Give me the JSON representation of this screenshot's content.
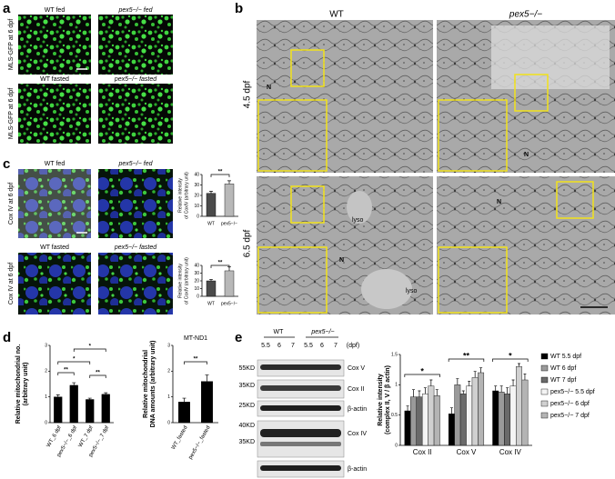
{
  "panel_labels": [
    "a",
    "b",
    "c",
    "d",
    "e"
  ],
  "panel_a": {
    "titles": [
      "WT fed",
      "pex5−/− fed",
      "WT fasted",
      "pex5−/− fasted"
    ],
    "row_labels": [
      "MLS-GFP at 6 dpf",
      "MLS-GFP at 6 dpf"
    ]
  },
  "panel_b": {
    "columns": [
      "WT",
      "pex5−/−"
    ],
    "rows": [
      "4.5 dpf",
      "6.5 dpf"
    ],
    "annotations": [
      "N",
      "N",
      "N",
      "N",
      "lyso",
      "lyso"
    ]
  },
  "panel_c": {
    "titles": [
      "WT fed",
      "pex5−/− fed",
      "WT fasted",
      "pex5−/− fasted"
    ],
    "row_labels": [
      "Cox IV at 6 dpf",
      "Cox IV at 6 dpf"
    ]
  },
  "panel_e": {
    "genotypes": [
      "WT",
      "pex5−/−"
    ],
    "lanes": [
      "5.5",
      "6",
      "7",
      "5.5",
      "6",
      "7",
      "(dpf)"
    ],
    "markers": [
      "55KD",
      "35KD",
      "25KD",
      "40KD",
      "35KD"
    ],
    "bands": [
      "Cox V",
      "Cox II",
      "β-actin",
      "Cox IV",
      "β-actin"
    ]
  },
  "chart_data": [
    {
      "type": "bar",
      "y_label": [
        "Relative intensity",
        "of CoxIV (arbitrary unit)"
      ],
      "categories": [
        "WT",
        "pex5−/−"
      ],
      "values": [
        22,
        31
      ],
      "errors": [
        2,
        3
      ],
      "colors": [
        "#4a4a4a",
        "#b8b8b8"
      ],
      "ylim": [
        0,
        40
      ],
      "yticks": [
        0,
        10,
        20,
        30,
        40
      ],
      "annotations": [
        "**"
      ]
    },
    {
      "type": "bar",
      "y_label": [
        "Relative intensity",
        "of CoxIV (arbitrary unit)"
      ],
      "categories": [
        "WT",
        "pex5−/−"
      ],
      "values": [
        20,
        33
      ],
      "errors": [
        2,
        5
      ],
      "colors": [
        "#4a4a4a",
        "#b8b8b8"
      ],
      "ylim": [
        0,
        40
      ],
      "yticks": [
        0,
        10,
        20,
        30,
        40
      ],
      "annotations": [
        "**"
      ]
    },
    {
      "type": "bar",
      "y_label": [
        "Relative mitochondrial no.",
        "(arbitrary unit)"
      ],
      "categories": [
        "WT_6 dpf",
        "pex5−/−_6 dpf",
        "WT_7 dpf",
        "pex5−/−_7 dpf"
      ],
      "values": [
        1.0,
        1.45,
        0.9,
        1.1
      ],
      "errors": [
        0.08,
        0.1,
        0.05,
        0.06
      ],
      "colors": [
        "#000000",
        "#000000",
        "#000000",
        "#000000"
      ],
      "ylim": [
        0,
        3
      ],
      "yticks": [
        0,
        1,
        2,
        3
      ],
      "annotations": [
        "**",
        "**",
        "*",
        "*"
      ]
    },
    {
      "type": "bar",
      "title": "MT-ND1",
      "y_label": [
        "Relative mitochondrial",
        "DNA amounts (arbitrary unit)"
      ],
      "categories": [
        "WT_fasted",
        "pex5−/−_fasted"
      ],
      "values": [
        0.8,
        1.6
      ],
      "errors": [
        0.15,
        0.25
      ],
      "colors": [
        "#000000",
        "#000000"
      ],
      "ylim": [
        0,
        3
      ],
      "yticks": [
        0,
        1,
        2,
        3
      ],
      "annotations": [
        "**"
      ]
    },
    {
      "type": "grouped_bar",
      "y_label": [
        "Relative intensity",
        "(complex II, V / β actin)"
      ],
      "categories": [
        "Cox II",
        "Cox V",
        "Cox IV"
      ],
      "series": [
        {
          "name": "WT 5.5 dpf",
          "color": "#000000",
          "values": [
            0.57,
            0.52,
            0.9
          ],
          "errors": [
            0.08,
            0.1,
            0.08
          ]
        },
        {
          "name": "WT 6 dpf",
          "color": "#9a9a9a",
          "values": [
            0.8,
            1.0,
            0.88
          ],
          "errors": [
            0.12,
            0.1,
            0.1
          ]
        },
        {
          "name": "WT 7 dpf",
          "color": "#6a6a6a",
          "values": [
            0.8,
            0.85,
            0.85
          ],
          "errors": [
            0.1,
            0.05,
            0.1
          ]
        },
        {
          "name": "pex5−/− 5.5 dpf",
          "color": "#f4f4f4",
          "values": [
            0.85,
            0.98,
            0.98
          ],
          "errors": [
            0.1,
            0.08,
            0.1
          ]
        },
        {
          "name": "pex5−/− 6 dpf",
          "color": "#d0d0d0",
          "values": [
            0.98,
            1.12,
            1.3
          ],
          "errors": [
            0.1,
            0.1,
            0.05
          ]
        },
        {
          "name": "pex5−/− 7 dpf",
          "color": "#b4b4b4",
          "values": [
            0.82,
            1.2,
            1.08
          ],
          "errors": [
            0.1,
            0.08,
            0.1
          ]
        }
      ],
      "ylim": [
        0,
        1.5
      ],
      "yticks": [
        0,
        0.5,
        1,
        1.5
      ],
      "annotations": [
        "*",
        "**",
        "*"
      ]
    }
  ]
}
